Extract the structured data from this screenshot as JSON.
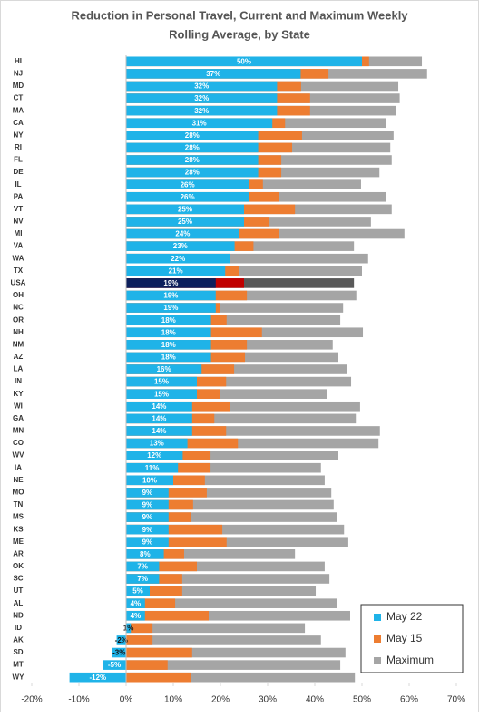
{
  "chart_data": {
    "type": "bar",
    "orientation": "horizontal",
    "overlap": true,
    "title": "Reduction in Personal Travel, Current and Maximum Weekly",
    "subtitle": "Rolling Average, by State",
    "categories": [
      "HI",
      "NJ",
      "MD",
      "CT",
      "MA",
      "CA",
      "NY",
      "RI",
      "FL",
      "DE",
      "IL",
      "PA",
      "VT",
      "NV",
      "MI",
      "VA",
      "WA",
      "TX",
      "USA",
      "OH",
      "NC",
      "OR",
      "NH",
      "NM",
      "AZ",
      "LA",
      "IN",
      "KY",
      "WI",
      "GA",
      "MN",
      "CO",
      "WV",
      "IA",
      "NE",
      "MO",
      "TN",
      "MS",
      "KS",
      "ME",
      "AR",
      "OK",
      "SC",
      "UT",
      "AL",
      "ND",
      "ID",
      "AK",
      "SD",
      "MT",
      "WY"
    ],
    "highlight": "USA",
    "series": [
      {
        "name": "May 22",
        "color": "#1fb3e8",
        "highlight_color": "#0d1f5c",
        "values": [
          50,
          37,
          32,
          32,
          32,
          31,
          28,
          28,
          28,
          28,
          26,
          26,
          25,
          25,
          24,
          23,
          22,
          21,
          19,
          19,
          19,
          18,
          18,
          18,
          18,
          16,
          15,
          15,
          14,
          14,
          14,
          13,
          12,
          11,
          10,
          9,
          9,
          9,
          9,
          9,
          8,
          7,
          7,
          5,
          4,
          4,
          1,
          -2,
          -3,
          -5,
          -12
        ],
        "value_labels": [
          "50%",
          "37%",
          "32%",
          "32%",
          "32%",
          "31%",
          "28%",
          "28%",
          "28%",
          "28%",
          "26%",
          "26%",
          "25%",
          "25%",
          "24%",
          "23%",
          "22%",
          "21%",
          "19%",
          "19%",
          "19%",
          "18%",
          "18%",
          "18%",
          "18%",
          "16%",
          "15%",
          "15%",
          "14%",
          "14%",
          "14%",
          "13%",
          "12%",
          "11%",
          "10%",
          "9%",
          "9%",
          "9%",
          "9%",
          "9%",
          "8%",
          "7%",
          "7%",
          "5%",
          "4%",
          "4%",
          "1%",
          "-2%",
          "-3%",
          "-5%",
          "-12%"
        ]
      },
      {
        "name": "May 15",
        "color": "#ed7d31",
        "highlight_color": "#c00000",
        "values": [
          51.5,
          42.9,
          37.1,
          39,
          39,
          33.7,
          37.3,
          35.2,
          32.9,
          32.9,
          29,
          32.5,
          35.8,
          30.4,
          32.5,
          27,
          22,
          24,
          25,
          25.6,
          20,
          21.3,
          28.8,
          25.6,
          25.2,
          22.9,
          21.2,
          20,
          22.1,
          18.7,
          21.2,
          23.7,
          17.9,
          17.9,
          16.7,
          17.1,
          14.2,
          13.8,
          20.4,
          21.3,
          12.3,
          15,
          11.9,
          11.9,
          10.4,
          17.5,
          5.6,
          5.6,
          14,
          8.8,
          13.8
        ]
      },
      {
        "name": "Maximum",
        "color": "#a5a5a5",
        "highlight_color": "#595959",
        "values": [
          62.7,
          63.8,
          57.7,
          58,
          57.3,
          55,
          56.7,
          56,
          56.3,
          53.7,
          49.8,
          55,
          56.3,
          51.9,
          59,
          48.3,
          51.3,
          50,
          48.3,
          48.8,
          46,
          45.4,
          50.2,
          43.8,
          45,
          46.9,
          47.7,
          42.5,
          49.6,
          48.7,
          53.8,
          53.5,
          45,
          41.3,
          42.1,
          43.5,
          44,
          44.8,
          46.2,
          47.1,
          35.8,
          42.1,
          43.1,
          40.2,
          44.8,
          47.5,
          37.9,
          41.3,
          46.5,
          45.4,
          48.5
        ]
      }
    ],
    "xlim": [
      -20,
      70
    ],
    "xticks": [
      {
        "value": -20,
        "label": "-20%"
      },
      {
        "value": -10,
        "label": "-10%"
      },
      {
        "value": 0,
        "label": "0%"
      },
      {
        "value": 10,
        "label": "10%"
      },
      {
        "value": 20,
        "label": "20%"
      },
      {
        "value": 30,
        "label": "30%"
      },
      {
        "value": 40,
        "label": "40%"
      },
      {
        "value": 50,
        "label": "50%"
      },
      {
        "value": 60,
        "label": "60%"
      },
      {
        "value": 70,
        "label": "70%"
      }
    ],
    "grid": false,
    "legend": "bottom-right"
  }
}
